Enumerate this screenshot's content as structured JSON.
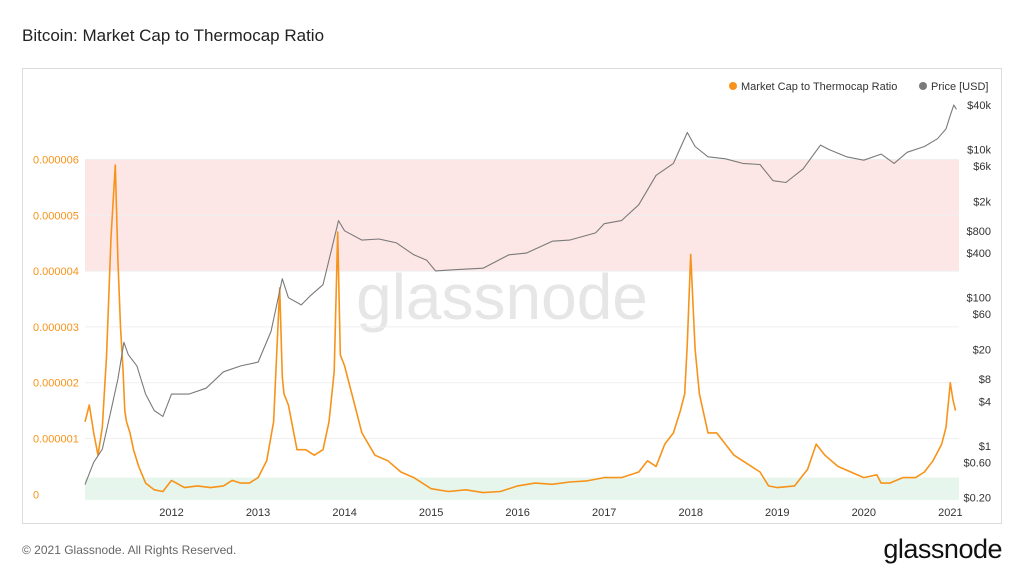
{
  "page": {
    "title": "Bitcoin: Market Cap to Thermocap Ratio",
    "footer": "© 2021 Glassnode. All Rights Reserved.",
    "brand": "glassnode",
    "watermark": "glassnode"
  },
  "colors": {
    "ratio": "#f7931a",
    "price": "#7a7a7a",
    "red_band": "#fde6e6",
    "green_band": "#e6f6ec",
    "grid": "#efefef"
  },
  "chart_data": {
    "type": "line",
    "title": "Bitcoin: Market Cap to Thermocap Ratio",
    "legend_position": "top-right",
    "legend": [
      "Market Cap to Thermocap Ratio",
      "Price [USD]"
    ],
    "x_range": [
      2011.0,
      2021.1
    ],
    "x_ticks": [
      "2012",
      "2013",
      "2014",
      "2015",
      "2016",
      "2017",
      "2018",
      "2019",
      "2020",
      "2021"
    ],
    "y_left": {
      "range": [
        -1.2e-07,
        7.3e-06
      ],
      "ticks": [
        0,
        1e-06,
        2e-06,
        3e-06,
        4e-06,
        5e-06,
        6e-06
      ],
      "tick_labels": [
        "0",
        "0.000001",
        "0.000002",
        "0.000003",
        "0.000004",
        "0.000005",
        "0.000006"
      ]
    },
    "y_right": {
      "scale": "log",
      "range": [
        0.18,
        70000
      ],
      "ticks": [
        0.2,
        0.6,
        1,
        4,
        8,
        20,
        60,
        100,
        400,
        800,
        2000,
        6000,
        10000,
        40000
      ],
      "tick_labels": [
        "$0.20",
        "$0.60",
        "$1",
        "$4",
        "$8",
        "$20",
        "$60",
        "$100",
        "$400",
        "$800",
        "$2k",
        "$6k",
        "$10k",
        "$40k"
      ]
    },
    "bands": [
      {
        "zone": "red",
        "from": 4e-06,
        "to": 6e-06
      },
      {
        "zone": "green",
        "from": -1e-07,
        "to": 3e-07
      }
    ],
    "series": [
      {
        "name": "Market Cap to Thermocap Ratio",
        "axis": "left",
        "x": [
          2011.0,
          2011.05,
          2011.1,
          2011.15,
          2011.2,
          2011.25,
          2011.3,
          2011.35,
          2011.38,
          2011.41,
          2011.44,
          2011.46,
          2011.48,
          2011.52,
          2011.56,
          2011.62,
          2011.7,
          2011.8,
          2011.9,
          2012.0,
          2012.15,
          2012.3,
          2012.45,
          2012.6,
          2012.7,
          2012.8,
          2012.9,
          2013.0,
          2013.1,
          2013.18,
          2013.25,
          2013.28,
          2013.3,
          2013.35,
          2013.45,
          2013.55,
          2013.65,
          2013.75,
          2013.82,
          2013.88,
          2013.92,
          2013.95,
          2014.0,
          2014.1,
          2014.2,
          2014.35,
          2014.5,
          2014.65,
          2014.8,
          2015.0,
          2015.2,
          2015.4,
          2015.6,
          2015.8,
          2016.0,
          2016.2,
          2016.4,
          2016.6,
          2016.8,
          2017.0,
          2017.2,
          2017.4,
          2017.5,
          2017.6,
          2017.7,
          2017.8,
          2017.88,
          2017.93,
          2017.96,
          2018.0,
          2018.05,
          2018.1,
          2018.2,
          2018.3,
          2018.4,
          2018.5,
          2018.6,
          2018.8,
          2018.9,
          2019.0,
          2019.2,
          2019.35,
          2019.45,
          2019.55,
          2019.7,
          2019.85,
          2020.0,
          2020.15,
          2020.2,
          2020.3,
          2020.45,
          2020.6,
          2020.7,
          2020.8,
          2020.9,
          2020.95,
          2021.0,
          2021.03,
          2021.06
        ],
        "y": [
          1.3e-06,
          1.6e-06,
          1.1e-06,
          7e-07,
          1.2e-06,
          2.5e-06,
          4.6e-06,
          5.9e-06,
          4.2e-06,
          3e-06,
          2.2e-06,
          1.5e-06,
          1.3e-06,
          1.1e-06,
          8e-07,
          5e-07,
          2e-07,
          8e-08,
          5e-08,
          2.5e-07,
          1.2e-07,
          1.5e-07,
          1.2e-07,
          1.5e-07,
          2.5e-07,
          2e-07,
          2e-07,
          3e-07,
          6e-07,
          1.3e-06,
          3.7e-06,
          2.1e-06,
          1.8e-06,
          1.6e-06,
          8e-07,
          8e-07,
          7e-07,
          8e-07,
          1.3e-06,
          2.2e-06,
          4.7e-06,
          2.5e-06,
          2.3e-06,
          1.7e-06,
          1.1e-06,
          7e-07,
          6e-07,
          4e-07,
          3e-07,
          1e-07,
          5e-08,
          8e-08,
          3e-08,
          5e-08,
          1.5e-07,
          2e-07,
          1.8e-07,
          2.2e-07,
          2.4e-07,
          3e-07,
          3e-07,
          4e-07,
          6e-07,
          5e-07,
          9e-07,
          1.1e-06,
          1.5e-06,
          1.8e-06,
          2.7e-06,
          4.3e-06,
          2.6e-06,
          1.8e-06,
          1.1e-06,
          1.1e-06,
          9e-07,
          7e-07,
          6e-07,
          4e-07,
          1.5e-07,
          1.2e-07,
          1.5e-07,
          4.5e-07,
          9e-07,
          7e-07,
          5e-07,
          4e-07,
          3e-07,
          3.5e-07,
          2e-07,
          2e-07,
          3e-07,
          3e-07,
          4e-07,
          6e-07,
          9e-07,
          1.2e-06,
          2e-06,
          1.7e-06,
          1.5e-06
        ]
      },
      {
        "name": "Price [USD]",
        "axis": "right",
        "x": [
          2011.0,
          2011.1,
          2011.2,
          2011.3,
          2011.38,
          2011.45,
          2011.5,
          2011.6,
          2011.7,
          2011.8,
          2011.9,
          2012.0,
          2012.2,
          2012.4,
          2012.6,
          2012.8,
          2013.0,
          2013.15,
          2013.28,
          2013.35,
          2013.5,
          2013.6,
          2013.75,
          2013.85,
          2013.93,
          2014.0,
          2014.2,
          2014.4,
          2014.6,
          2014.8,
          2014.95,
          2015.05,
          2015.3,
          2015.6,
          2015.9,
          2016.1,
          2016.4,
          2016.6,
          2016.9,
          2017.0,
          2017.2,
          2017.4,
          2017.6,
          2017.8,
          2017.96,
          2018.05,
          2018.2,
          2018.4,
          2018.6,
          2018.8,
          2018.95,
          2019.1,
          2019.3,
          2019.5,
          2019.6,
          2019.8,
          2020.0,
          2020.2,
          2020.35,
          2020.5,
          2020.7,
          2020.85,
          2020.95,
          2021.0,
          2021.04,
          2021.07
        ],
        "y": [
          0.3,
          0.6,
          0.9,
          3,
          8,
          25,
          17,
          12,
          5,
          3,
          2.5,
          5,
          5,
          6,
          10,
          12,
          13.5,
          35,
          180,
          100,
          80,
          105,
          150,
          450,
          1100,
          800,
          600,
          620,
          550,
          380,
          320,
          230,
          240,
          250,
          380,
          400,
          580,
          600,
          750,
          1000,
          1100,
          1800,
          4500,
          6500,
          17000,
          11000,
          8000,
          7500,
          6500,
          6300,
          3800,
          3600,
          5500,
          11500,
          10000,
          8000,
          7200,
          8700,
          6500,
          9200,
          11000,
          14000,
          19000,
          29000,
          40000,
          35000
        ]
      }
    ]
  }
}
